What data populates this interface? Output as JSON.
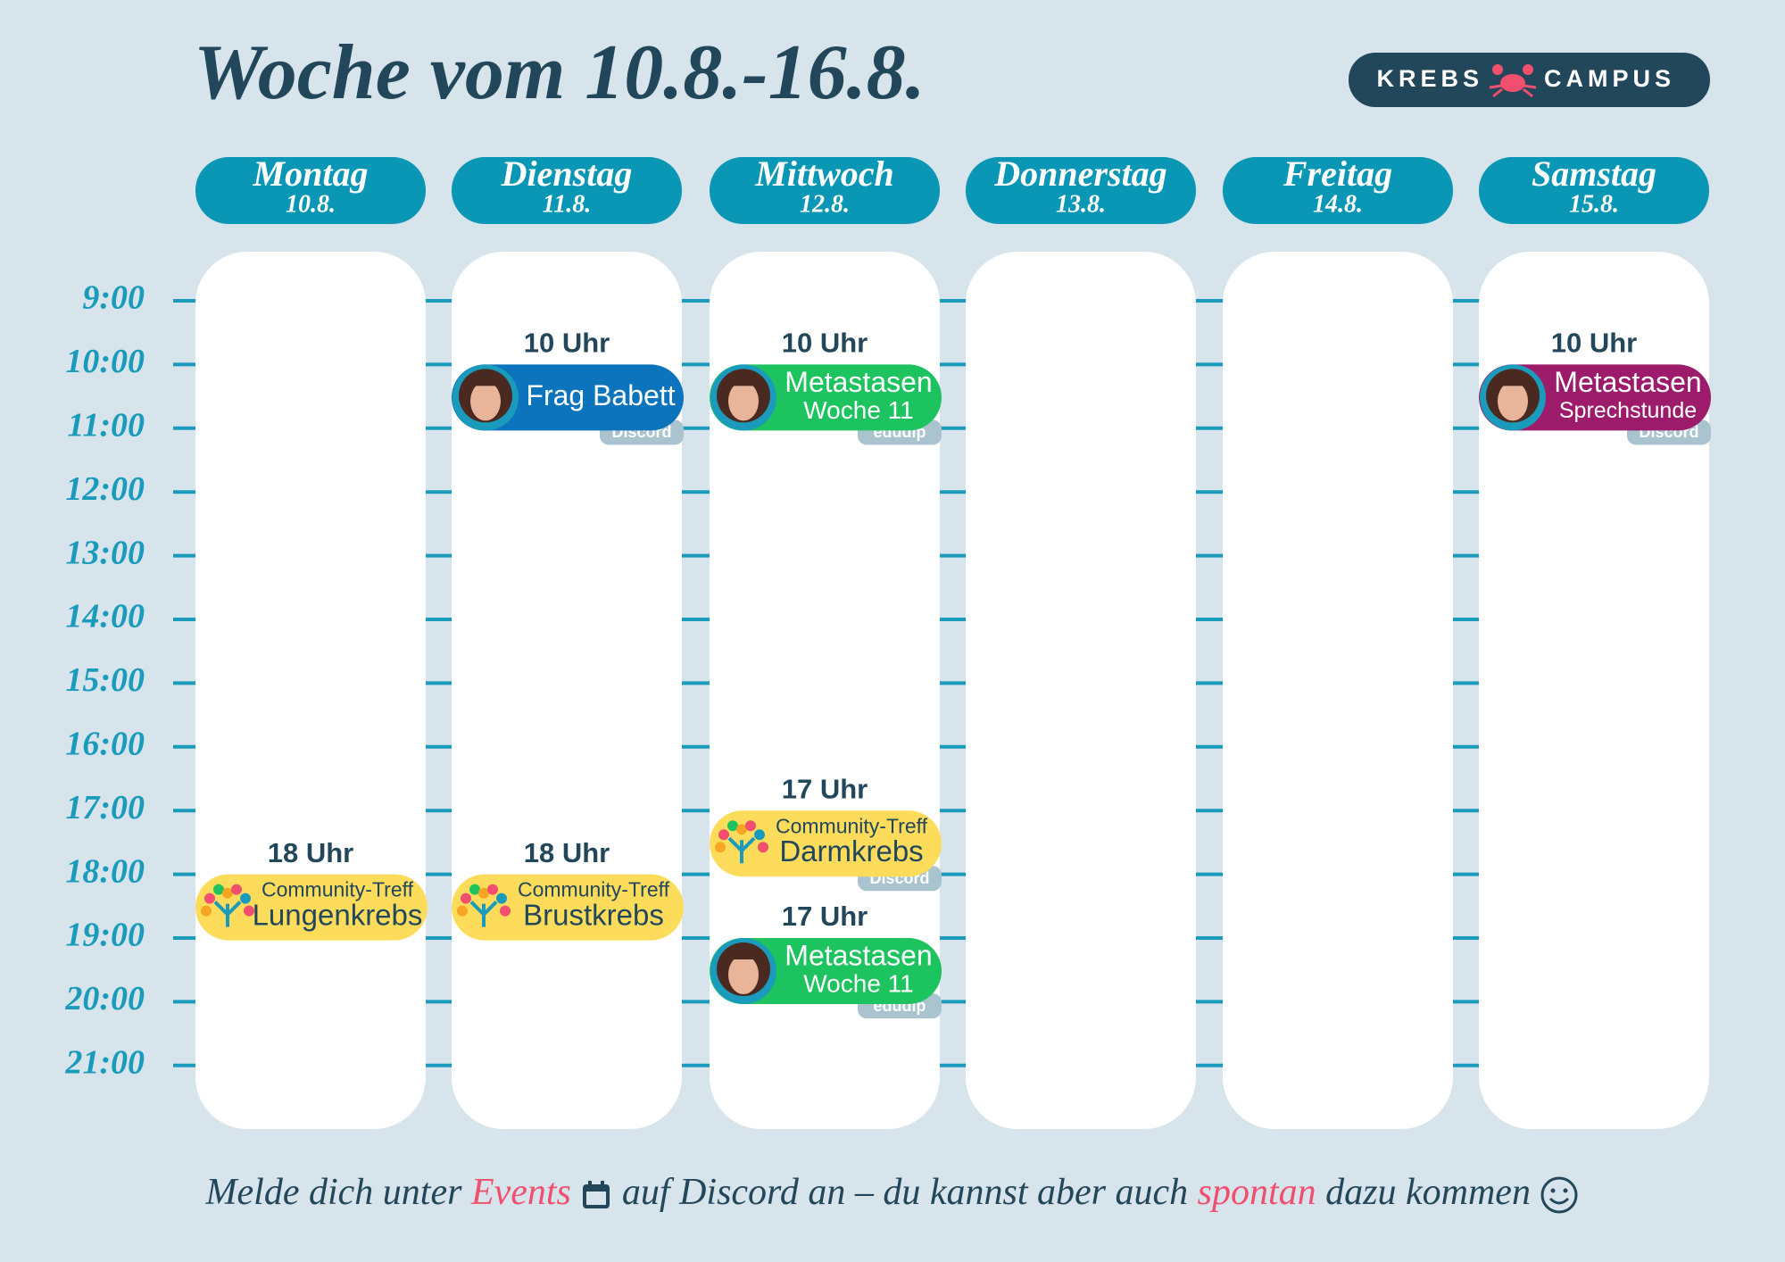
{
  "header": {
    "title": "Woche vom 10.8.-16.8.",
    "brand": [
      "KREBS",
      "CAMPUS"
    ]
  },
  "days": [
    {
      "name": "Montag",
      "date": "10.8.",
      "events": [
        {
          "time": "18 Uhr",
          "title": "Community-Treff",
          "subtitle": "Lungenkrebs"
        }
      ]
    },
    {
      "name": "Dienstag",
      "date": "11.8.",
      "events": [
        {
          "time": "10 Uhr",
          "title": "Frag Babett",
          "platform": "Discord"
        },
        {
          "time": "18 Uhr",
          "title": "Community-Treff",
          "subtitle": "Brustkrebs"
        }
      ]
    },
    {
      "name": "Mittwoch",
      "date": "12.8.",
      "events": [
        {
          "time": "10 Uhr",
          "title": "Metastasen",
          "subtitle": "Woche 11",
          "platform": "edudip"
        },
        {
          "time": "17 Uhr",
          "title": "Community-Treff",
          "subtitle": "Darmkrebs",
          "platform": "Discord"
        },
        {
          "time": "17 Uhr",
          "title": "Metastasen",
          "subtitle": "Woche 11",
          "platform": "edudip"
        }
      ]
    },
    {
      "name": "Donnerstag",
      "date": "13.8.",
      "events": []
    },
    {
      "name": "Freitag",
      "date": "14.8.",
      "events": []
    },
    {
      "name": "Samstag",
      "date": "15.8.",
      "events": [
        {
          "time": "10 Uhr",
          "title": "Metastasen",
          "subtitle": "Sprechstunde",
          "platform": "Discord"
        }
      ]
    }
  ],
  "times": [
    "9:00",
    "10:00",
    "11:00",
    "12:00",
    "13:00",
    "14:00",
    "15:00",
    "16:00",
    "17:00",
    "18:00",
    "19:00",
    "20:00",
    "21:00"
  ],
  "footer": {
    "parts": [
      "Melde dich unter ",
      "Events",
      " auf Discord an – du kannst aber auch ",
      "spontan",
      " dazu kommen"
    ]
  }
}
